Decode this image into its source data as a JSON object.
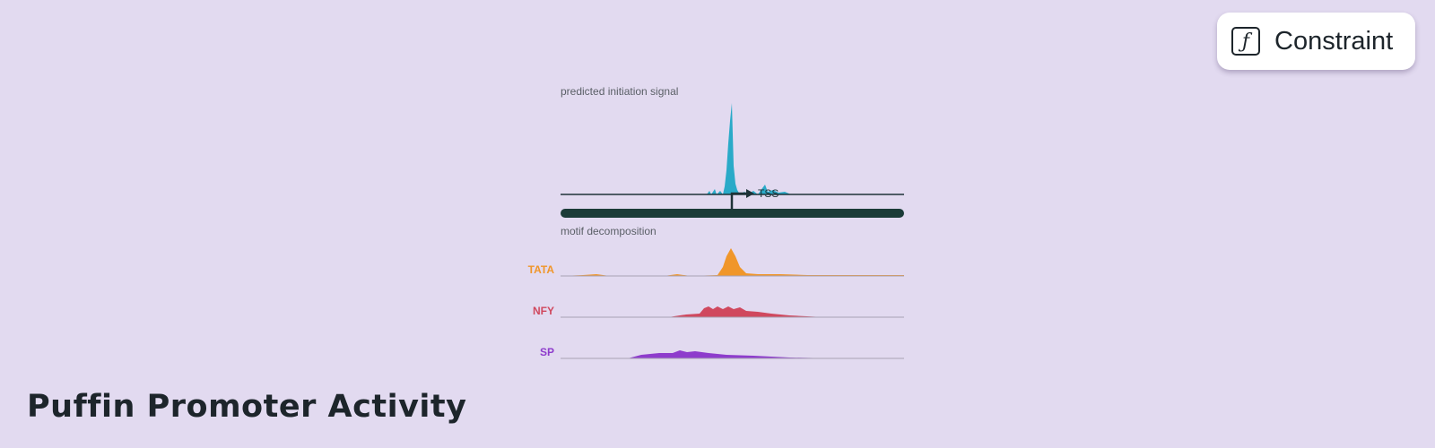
{
  "constraint_button": {
    "icon": "ƒ",
    "label": "Constraint"
  },
  "title": "Puffin Promoter Activity",
  "signal": {
    "label": "predicted initiation signal",
    "marker": "TSS"
  },
  "motifs": {
    "label": "motif decomposition",
    "tracks": [
      "TATA",
      "NFY",
      "SP"
    ]
  }
}
